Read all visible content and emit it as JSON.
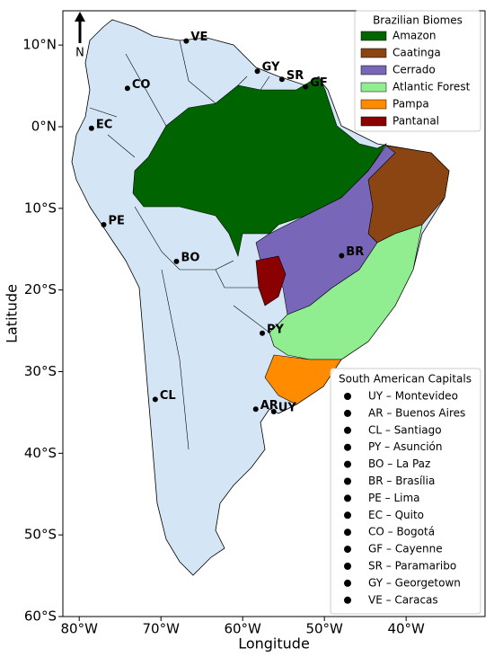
{
  "chart_data": {
    "type": "map",
    "xlabel": "Longitude",
    "ylabel": "Latitude",
    "north": "N",
    "land_color": "#d4e6f5",
    "xlim": [
      -82,
      -30.35
    ],
    "ylim": [
      -60,
      14.2
    ],
    "xticks": [
      {
        "value": -80,
        "label": "80°W"
      },
      {
        "value": -70,
        "label": "70°W"
      },
      {
        "value": -60,
        "label": "60°W"
      },
      {
        "value": -50,
        "label": "50°W"
      },
      {
        "value": -40,
        "label": "40°W"
      }
    ],
    "yticks": [
      {
        "value": 10,
        "label": "10°N"
      },
      {
        "value": 0,
        "label": "0°N"
      },
      {
        "value": -10,
        "label": "10°S"
      },
      {
        "value": -20,
        "label": "20°S"
      },
      {
        "value": -30,
        "label": "30°S"
      },
      {
        "value": -40,
        "label": "40°S"
      },
      {
        "value": -50,
        "label": "50°S"
      },
      {
        "value": -60,
        "label": "60°S"
      }
    ],
    "biomes": {
      "title": "Brazilian Biomes",
      "items": [
        {
          "name": "Amazon",
          "color": "#006400"
        },
        {
          "name": "Caatinga",
          "color": "#8b4513"
        },
        {
          "name": "Cerrado",
          "color": "#7867b9"
        },
        {
          "name": "Atlantic Forest",
          "color": "#90ee90"
        },
        {
          "name": "Pampa",
          "color": "#ff8c00"
        },
        {
          "name": "Pantanal",
          "color": "#8b0000"
        }
      ]
    },
    "capitals": {
      "title": "South American Capitals",
      "items": [
        {
          "code": "UY",
          "label": "UY – Montevideo",
          "lon": -56.2,
          "lat": -34.9
        },
        {
          "code": "AR",
          "label": "AR – Buenos Aires",
          "lon": -58.4,
          "lat": -34.6
        },
        {
          "code": "CL",
          "label": "CL – Santiago",
          "lon": -70.7,
          "lat": -33.4
        },
        {
          "code": "PY",
          "label": "PY – Asunción",
          "lon": -57.6,
          "lat": -25.3
        },
        {
          "code": "BO",
          "label": "BO – La Paz",
          "lon": -68.1,
          "lat": -16.5
        },
        {
          "code": "BR",
          "label": "BR – Brasília",
          "lon": -47.9,
          "lat": -15.8
        },
        {
          "code": "PE",
          "label": "PE – Lima",
          "lon": -77.0,
          "lat": -12.0
        },
        {
          "code": "EC",
          "label": "EC – Quito",
          "lon": -78.5,
          "lat": -0.2
        },
        {
          "code": "CO",
          "label": "CO – Bogotá",
          "lon": -74.1,
          "lat": 4.7
        },
        {
          "code": "GF",
          "label": "GF – Cayenne",
          "lon": -52.3,
          "lat": 4.9
        },
        {
          "code": "SR",
          "label": "SR – Paramaribo",
          "lon": -55.2,
          "lat": 5.8
        },
        {
          "code": "GY",
          "label": "GY – Georgetown",
          "lon": -58.2,
          "lat": 6.8
        },
        {
          "code": "VE",
          "label": "VE – Caracas",
          "lon": -66.9,
          "lat": 10.5
        }
      ]
    }
  }
}
